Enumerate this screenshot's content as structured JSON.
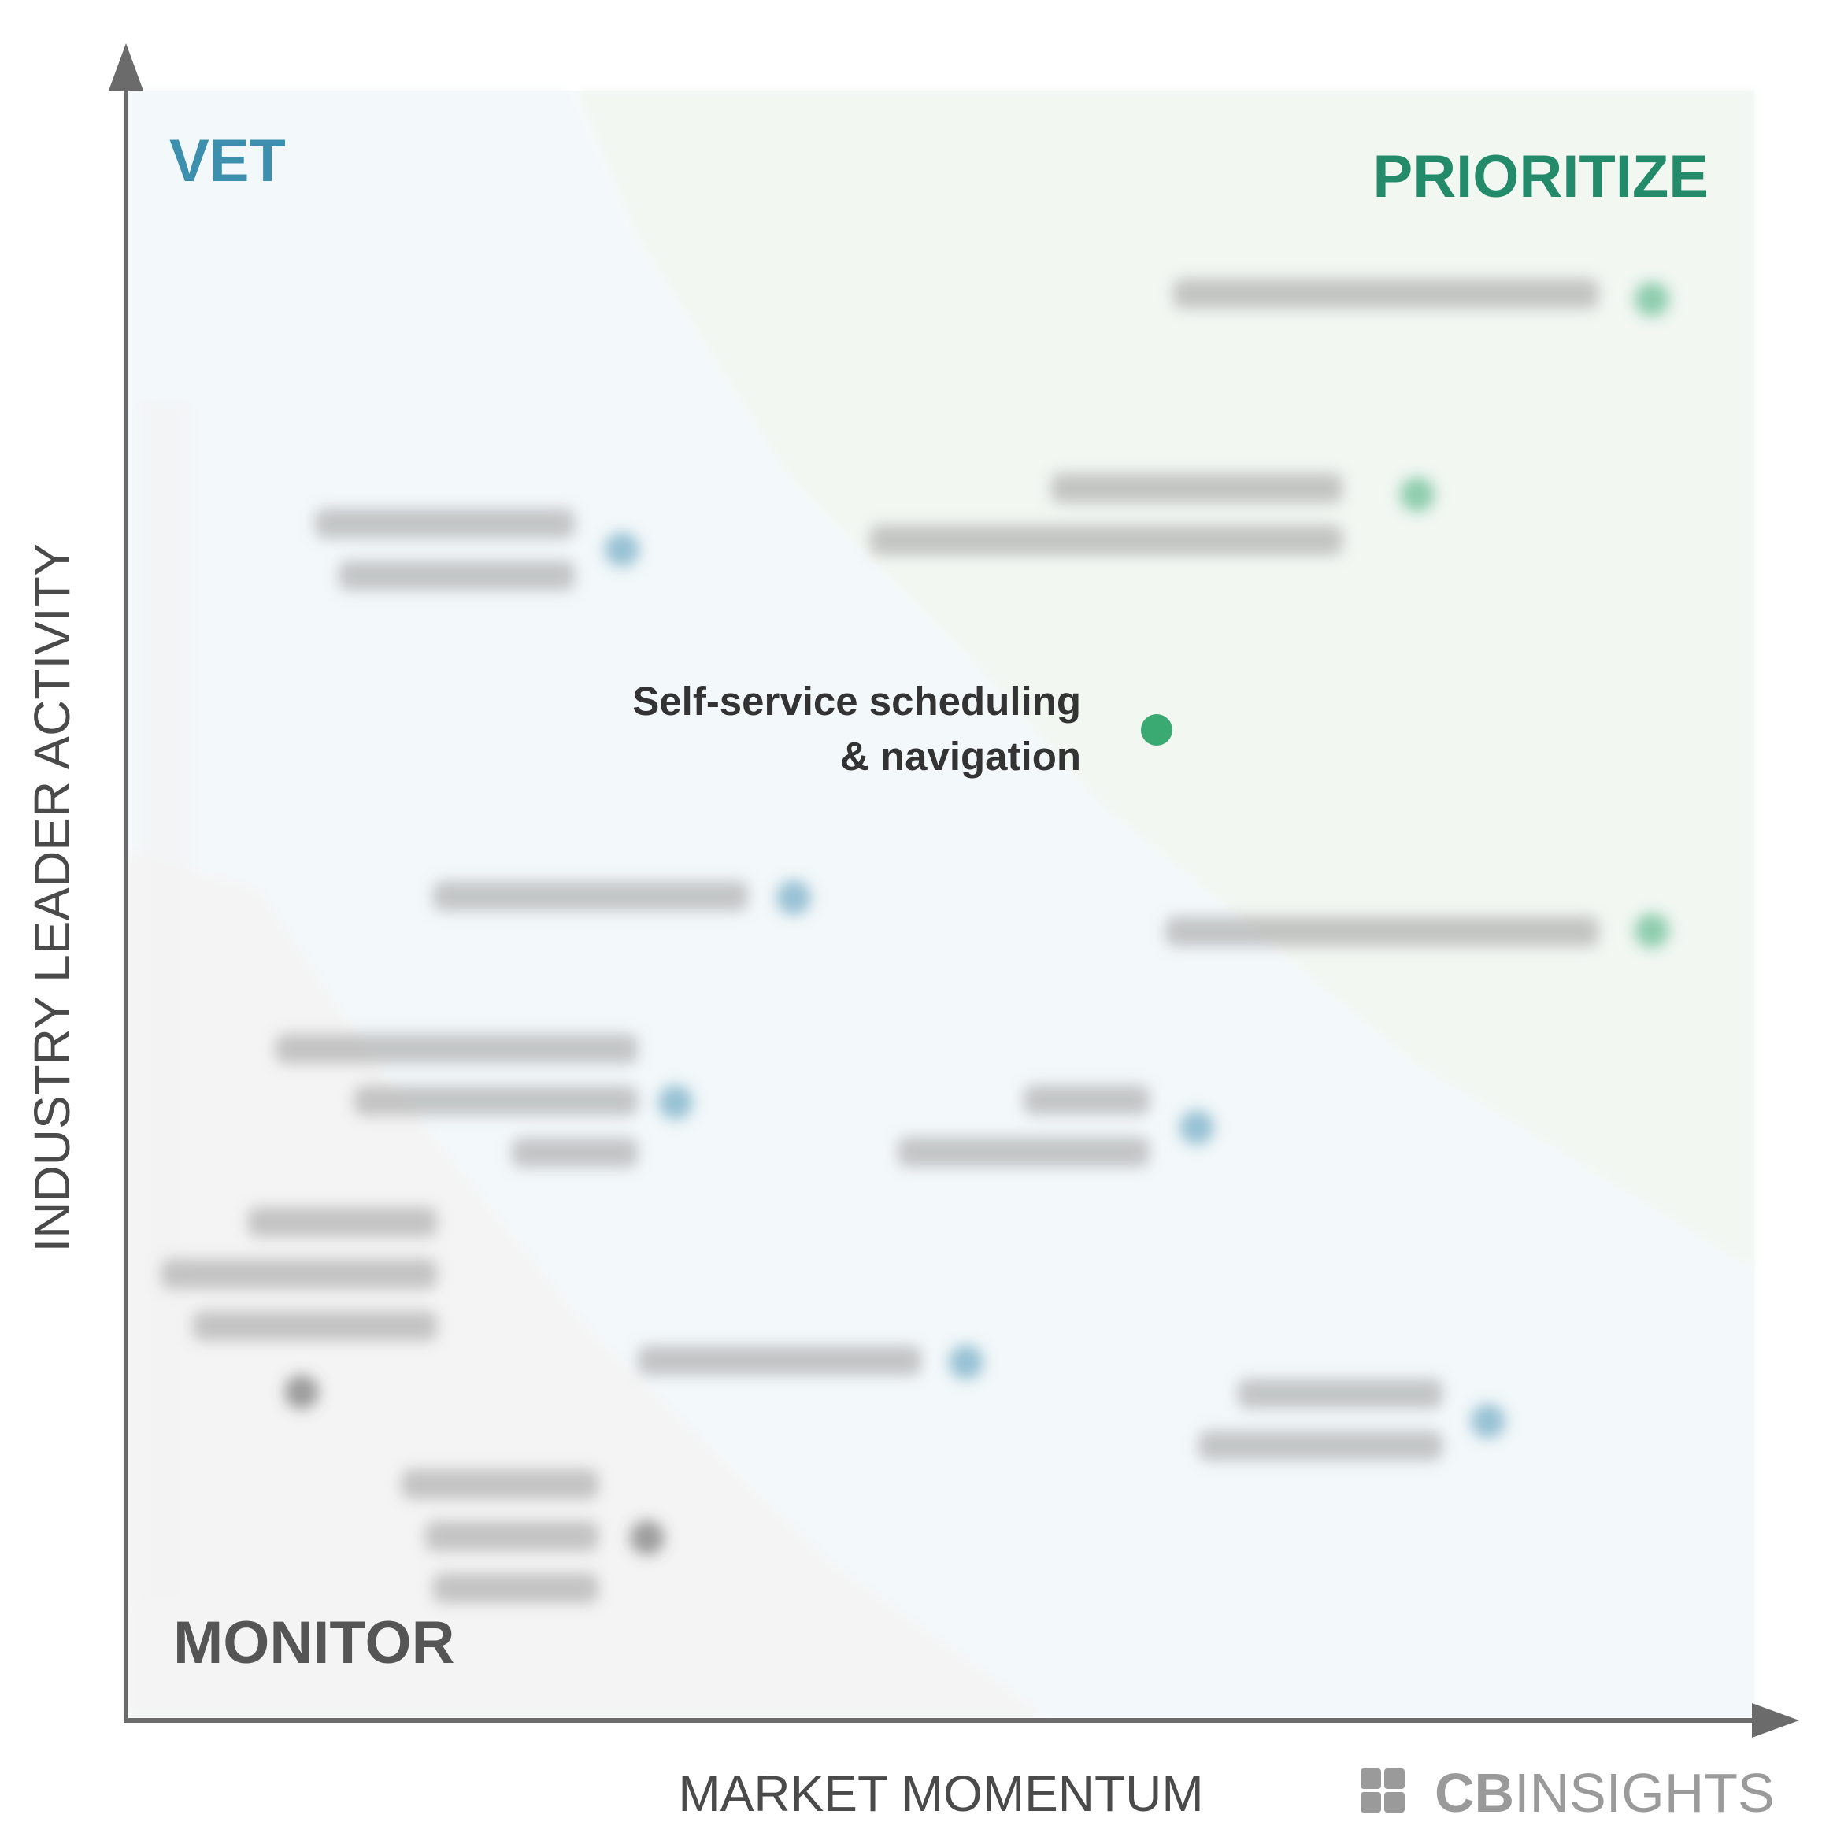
{
  "chart_data": {
    "type": "scatter",
    "xlabel": "MARKET MOMENTUM",
    "ylabel": "INDUSTRY LEADER ACTIVITY",
    "zones": {
      "vet": "VET",
      "prioritize": "PRIORITIZE",
      "monitor": "MONITOR"
    },
    "highlight": {
      "label_lines": [
        "Self-service scheduling",
        "& navigation"
      ],
      "zone": "prioritize"
    },
    "blurred_points": [
      {
        "zone": "prioritize",
        "lines": 1
      },
      {
        "zone": "prioritize",
        "lines": 2
      },
      {
        "zone": "prioritize",
        "lines": 1
      },
      {
        "zone": "vet",
        "lines": 2
      },
      {
        "zone": "vet",
        "lines": 1
      },
      {
        "zone": "vet",
        "lines": 3
      },
      {
        "zone": "vet",
        "lines": 2
      },
      {
        "zone": "vet",
        "lines": 1
      },
      {
        "zone": "vet",
        "lines": 2
      },
      {
        "zone": "monitor",
        "lines": 3
      },
      {
        "zone": "monitor",
        "lines": 3
      }
    ],
    "colors": {
      "prioritize": "#3aaa72",
      "vet": "#4a94b4",
      "monitor": "#555555",
      "prioritize_label": "#238a6a",
      "vet_label": "#3d8fae",
      "monitor_label": "#555555",
      "axis": "#6b6b6b"
    }
  },
  "branding": {
    "logo_text_bold": "CB",
    "logo_text_light": "INSIGHTS",
    "logo_color": "#9a9a9a"
  }
}
